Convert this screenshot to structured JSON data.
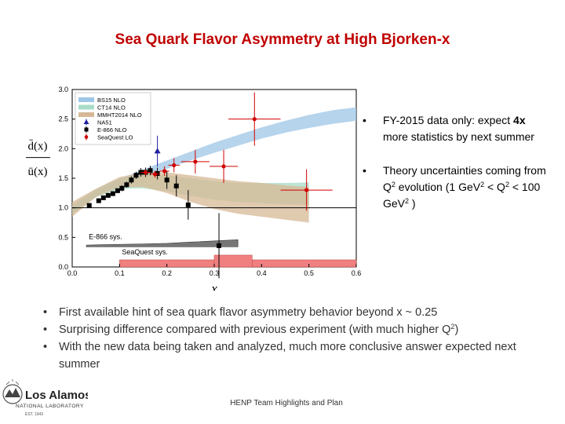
{
  "slide": {
    "title": "Sea Quark Flavor Asymmetry at High Bjorken-x",
    "right_bullets": [
      {
        "pre": "FY-2015 data only: expect ",
        "bold": "4x",
        "post": " more statistics by next summer"
      },
      {
        "line1": "Theory uncertainties coming from Q",
        "sup1": "2",
        "line2": " evolution (1 GeV",
        "sup2": "2",
        "line3": " < Q",
        "sup3": "2",
        "line4": " < 100 GeV",
        "sup4": "2",
        "line5": " )"
      }
    ],
    "bottom_bullets": [
      {
        "text": "First available hint of sea quark flavor asymmetry behavior beyond x ~ 0.25"
      },
      {
        "pre": "Surprising difference compared with previous experiment (with much higher Q",
        "sup": "2",
        "post": ")"
      },
      {
        "text": "With the new data being taken and analyzed, much more conclusive answer expected next summer"
      }
    ],
    "footer": "HENP Team Highlights and Plan",
    "logo": {
      "line1": "Los Alamos",
      "line2": "NATIONAL LABORATORY",
      "line3": "EST. 1943"
    },
    "bullet_char": "•"
  },
  "chart_data": {
    "type": "scatter",
    "xlabel": "x",
    "ylabel_num": "d̄(x)",
    "ylabel_den": "ū(x)",
    "xlim": [
      0.0,
      0.6
    ],
    "ylim": [
      0.0,
      3.0
    ],
    "xticks": [
      "0.0",
      "0.1",
      "0.2",
      "0.3",
      "0.4",
      "0.5",
      "0.6"
    ],
    "yticks": [
      "0.0",
      "0.5",
      "1.0",
      "1.5",
      "2.0",
      "2.5",
      "3.0"
    ],
    "bands": [
      {
        "name": "BS15 NLO",
        "color": "#9ec6e6",
        "x": [
          0.0,
          0.05,
          0.1,
          0.15,
          0.2,
          0.25,
          0.3,
          0.35,
          0.4,
          0.45,
          0.5,
          0.55,
          0.6
        ],
        "lo": [
          0.9,
          1.2,
          1.38,
          1.52,
          1.66,
          1.8,
          1.93,
          2.05,
          2.17,
          2.27,
          2.35,
          2.42,
          2.47
        ],
        "hi": [
          1.0,
          1.28,
          1.48,
          1.65,
          1.8,
          1.95,
          2.1,
          2.23,
          2.36,
          2.47,
          2.57,
          2.65,
          2.7
        ]
      },
      {
        "name": "CT14 NLO",
        "color": "#a8dcc6",
        "x": [
          0.0,
          0.05,
          0.1,
          0.15,
          0.2,
          0.25,
          0.3,
          0.35,
          0.4,
          0.45,
          0.5
        ],
        "lo": [
          0.9,
          1.18,
          1.32,
          1.33,
          1.28,
          1.2,
          1.14,
          1.1,
          1.08,
          1.06,
          1.05
        ],
        "hi": [
          1.05,
          1.32,
          1.5,
          1.56,
          1.55,
          1.5,
          1.45,
          1.42,
          1.42,
          1.42,
          1.43
        ]
      },
      {
        "name": "MMHT2014 NLO",
        "color": "#d6b896",
        "x": [
          0.0,
          0.05,
          0.1,
          0.15,
          0.2,
          0.25,
          0.3,
          0.35,
          0.4,
          0.45,
          0.5
        ],
        "lo": [
          0.85,
          1.18,
          1.35,
          1.35,
          1.25,
          1.1,
          0.98,
          0.9,
          0.85,
          0.8,
          0.75
        ],
        "hi": [
          1.1,
          1.32,
          1.52,
          1.6,
          1.6,
          1.55,
          1.5,
          1.45,
          1.42,
          1.38,
          1.35
        ]
      }
    ],
    "series": [
      {
        "name": "NA51",
        "color": "#2020a0",
        "marker": "triangle",
        "x": [
          0.18
        ],
        "y": [
          1.96
        ],
        "err": [
          0.26
        ]
      },
      {
        "name": "E-866 NLO",
        "color": "#000000",
        "marker": "square",
        "x": [
          0.036,
          0.056,
          0.066,
          0.076,
          0.086,
          0.096,
          0.105,
          0.115,
          0.125,
          0.135,
          0.145,
          0.155,
          0.165,
          0.18,
          0.2,
          0.22,
          0.245,
          0.31
        ],
        "y": [
          1.04,
          1.12,
          1.17,
          1.21,
          1.24,
          1.29,
          1.33,
          1.39,
          1.47,
          1.55,
          1.6,
          1.6,
          1.63,
          1.58,
          1.47,
          1.37,
          1.05,
          0.36
        ],
        "err": [
          0.03,
          0.03,
          0.03,
          0.04,
          0.04,
          0.04,
          0.05,
          0.05,
          0.06,
          0.06,
          0.07,
          0.08,
          0.08,
          0.1,
          0.15,
          0.18,
          0.25,
          0.55
        ]
      },
      {
        "name": "SeaQuest LO",
        "color": "#d00000",
        "marker": "circle",
        "x": [
          0.155,
          0.175,
          0.195,
          0.215,
          0.26,
          0.32,
          0.385,
          0.495
        ],
        "y": [
          1.6,
          1.57,
          1.62,
          1.72,
          1.78,
          1.7,
          2.5,
          1.3
        ],
        "err": [
          0.05,
          0.06,
          0.08,
          0.12,
          0.2,
          0.28,
          0.45,
          0.35
        ],
        "xerr": [
          0.01,
          0.01,
          0.01,
          0.012,
          0.03,
          0.03,
          0.055,
          0.055
        ]
      }
    ],
    "sys_labels": [
      "E-866 sys.",
      "SeaQuest sys."
    ],
    "e866_sys": {
      "x": [
        0.03,
        0.08,
        0.15,
        0.2,
        0.25,
        0.3,
        0.35
      ],
      "h": [
        0.03,
        0.04,
        0.05,
        0.06,
        0.08,
        0.1,
        0.12
      ]
    },
    "seaquest_sys": {
      "x": [
        0.1,
        0.6
      ],
      "h": [
        0.12,
        0.12
      ],
      "bar_x": [
        0.3,
        0.38
      ],
      "bar_h": 0.2
    },
    "reference_line": 1.0
  }
}
